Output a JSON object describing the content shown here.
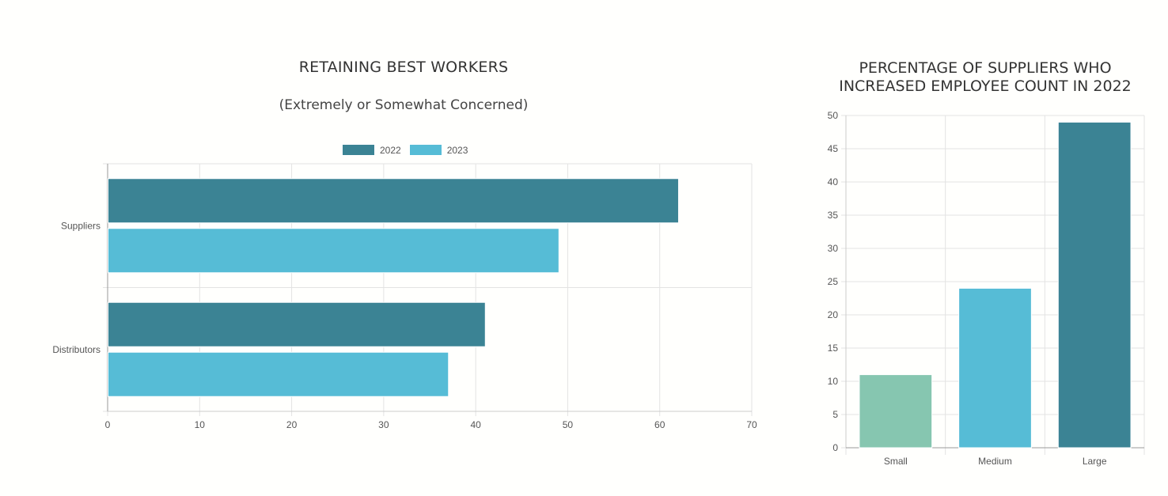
{
  "chart_data": [
    {
      "type": "bar",
      "orientation": "horizontal",
      "title": "RETAINING BEST WORKERS",
      "subtitle": "(Extremely or Somewhat Concerned)",
      "categories": [
        "Suppliers",
        "Distributors"
      ],
      "series": [
        {
          "name": "2022",
          "values": [
            62,
            41
          ],
          "color": "#3b8394"
        },
        {
          "name": "2023",
          "values": [
            49,
            37
          ],
          "color": "#56bcd6"
        }
      ],
      "xlim": [
        0,
        70
      ],
      "xticks": [
        "0",
        "10",
        "20",
        "30",
        "40",
        "50",
        "60",
        "70"
      ],
      "grid": true,
      "legend_position": "top"
    },
    {
      "type": "bar",
      "orientation": "vertical",
      "title": "PERCENTAGE OF SUPPLIERS WHO INCREASED EMPLOYEE COUNT IN 2022",
      "title_lines": [
        "PERCENTAGE OF SUPPLIERS WHO",
        "INCREASED EMPLOYEE COUNT IN 2022"
      ],
      "categories": [
        "Small",
        "Medium",
        "Large"
      ],
      "values": [
        11,
        24,
        49
      ],
      "colors": [
        "#86c6b0",
        "#56bcd6",
        "#3b8394"
      ],
      "ylim": [
        0,
        50
      ],
      "yticks": [
        "0",
        "5",
        "10",
        "15",
        "20",
        "25",
        "30",
        "35",
        "40",
        "45",
        "50"
      ],
      "grid": true
    }
  ]
}
